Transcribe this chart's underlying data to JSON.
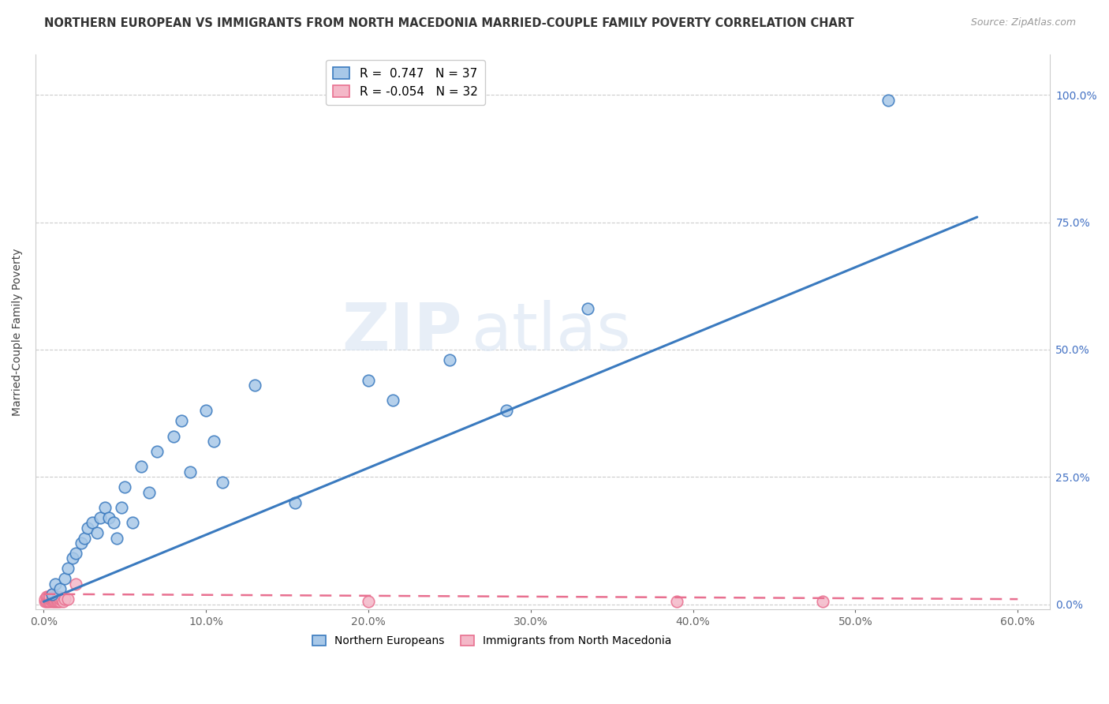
{
  "title": "NORTHERN EUROPEAN VS IMMIGRANTS FROM NORTH MACEDONIA MARRIED-COUPLE FAMILY POVERTY CORRELATION CHART",
  "source": "Source: ZipAtlas.com",
  "ylabel": "Married-Couple Family Poverty",
  "xlim": [
    -0.005,
    0.62
  ],
  "ylim": [
    -0.01,
    1.08
  ],
  "xticks": [
    0.0,
    0.1,
    0.2,
    0.3,
    0.4,
    0.5,
    0.6
  ],
  "xticklabels": [
    "0.0%",
    "10.0%",
    "20.0%",
    "30.0%",
    "40.0%",
    "50.0%",
    "60.0%"
  ],
  "yticks": [
    0.0,
    0.25,
    0.5,
    0.75,
    1.0
  ],
  "yticklabels": [
    "0.0%",
    "25.0%",
    "50.0%",
    "75.0%",
    "100.0%"
  ],
  "blue_R": 0.747,
  "blue_N": 37,
  "pink_R": -0.054,
  "pink_N": 32,
  "blue_color": "#a8c8e8",
  "pink_color": "#f4b8c8",
  "blue_line_color": "#3a7abf",
  "pink_line_color": "#e87090",
  "watermark_zip": "ZIP",
  "watermark_atlas": "atlas",
  "blue_scatter_x": [
    0.005,
    0.007,
    0.01,
    0.013,
    0.015,
    0.018,
    0.02,
    0.023,
    0.025,
    0.027,
    0.03,
    0.033,
    0.035,
    0.038,
    0.04,
    0.043,
    0.045,
    0.048,
    0.05,
    0.055,
    0.06,
    0.065,
    0.07,
    0.08,
    0.085,
    0.09,
    0.1,
    0.105,
    0.11,
    0.13,
    0.155,
    0.2,
    0.215,
    0.25,
    0.285,
    0.335,
    0.52
  ],
  "blue_scatter_y": [
    0.02,
    0.04,
    0.03,
    0.05,
    0.07,
    0.09,
    0.1,
    0.12,
    0.13,
    0.15,
    0.16,
    0.14,
    0.17,
    0.19,
    0.17,
    0.16,
    0.13,
    0.19,
    0.23,
    0.16,
    0.27,
    0.22,
    0.3,
    0.33,
    0.36,
    0.26,
    0.38,
    0.32,
    0.24,
    0.43,
    0.2,
    0.44,
    0.4,
    0.48,
    0.38,
    0.58,
    0.99
  ],
  "pink_scatter_x": [
    0.001,
    0.001,
    0.002,
    0.002,
    0.003,
    0.003,
    0.003,
    0.004,
    0.004,
    0.004,
    0.005,
    0.005,
    0.005,
    0.006,
    0.006,
    0.006,
    0.007,
    0.007,
    0.008,
    0.008,
    0.009,
    0.009,
    0.01,
    0.01,
    0.011,
    0.012,
    0.013,
    0.015,
    0.02,
    0.2,
    0.39,
    0.48
  ],
  "pink_scatter_y": [
    0.005,
    0.01,
    0.005,
    0.015,
    0.005,
    0.01,
    0.015,
    0.005,
    0.01,
    0.015,
    0.005,
    0.01,
    0.02,
    0.005,
    0.01,
    0.015,
    0.005,
    0.015,
    0.005,
    0.01,
    0.005,
    0.015,
    0.005,
    0.01,
    0.01,
    0.005,
    0.01,
    0.01,
    0.04,
    0.005,
    0.005,
    0.005
  ],
  "blue_line_x": [
    0.0,
    0.575
  ],
  "blue_line_y": [
    0.005,
    0.76
  ],
  "pink_line_x": [
    0.0,
    0.6
  ],
  "pink_line_y": [
    0.02,
    0.01
  ]
}
